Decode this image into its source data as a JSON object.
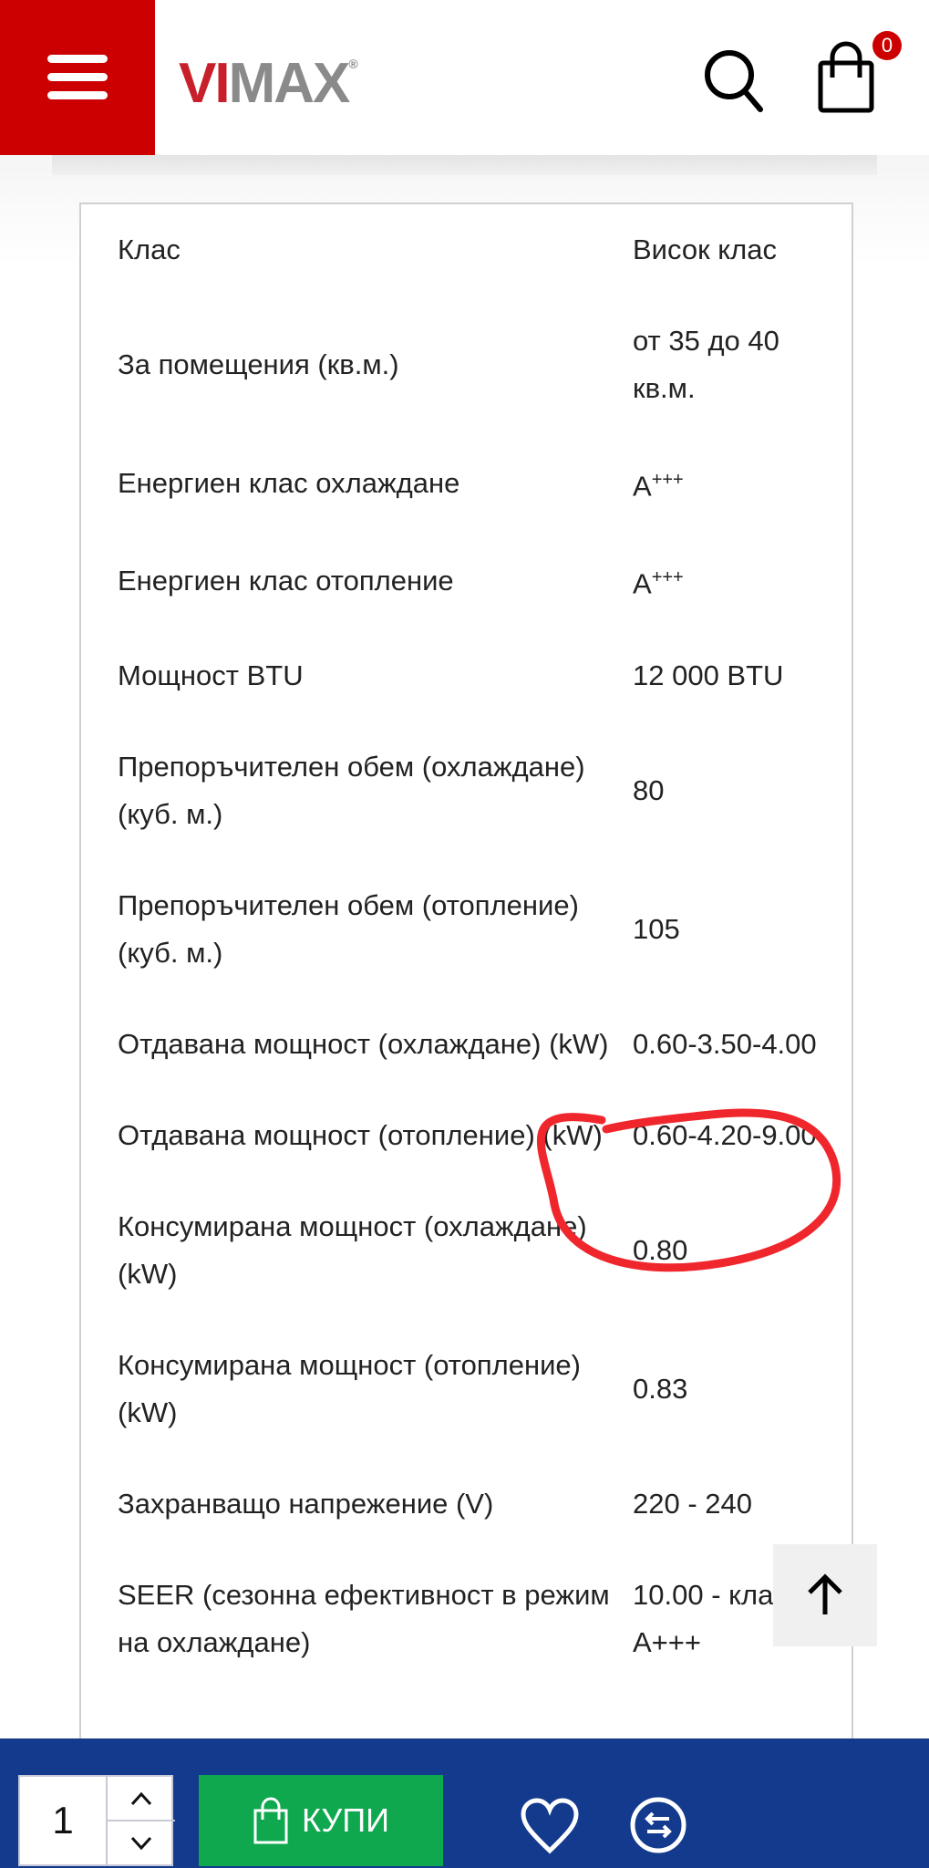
{
  "header": {
    "logo_text": "VIMAX",
    "logo_mark": "®",
    "cart_count": "0",
    "icons": [
      "menu-icon",
      "search-icon",
      "shopping-bag-icon"
    ],
    "brand_color": "#cc0000"
  },
  "specs": [
    {
      "label": "Клас",
      "value": "Висок клас"
    },
    {
      "label": "За помещения (кв.м.)",
      "value": "от 35 до 40 кв.м."
    },
    {
      "label": "Енергиен клас охлаждане",
      "value": "A+++",
      "sup": true
    },
    {
      "label": "Енергиен клас отопление",
      "value": "A+++",
      "sup": true
    },
    {
      "label": "Мощност BTU",
      "value": "12 000 BTU"
    },
    {
      "label": "Препоръчителен обем (охлаждане) (куб. м.)",
      "value": "80"
    },
    {
      "label": "Препоръчителен обем (отопление) (куб. м.)",
      "value": "105"
    },
    {
      "label": "Отдавана мощност (охлаждане) (kW)",
      "value": "0.60-3.50-4.00"
    },
    {
      "label": "Отдавана мощност (отопление) (kW)",
      "value": "0.60-4.20-9.00"
    },
    {
      "label": "Консумирана мощност (охлаждане) (kW)",
      "value": "0.80"
    },
    {
      "label": "Консумирана мощност (отопление) (kW)",
      "value": "0.83"
    },
    {
      "label": "Захранващо напрежение (V)",
      "value": "220 - 240"
    },
    {
      "label": "SEER (сезонна ефективност в режим на охлаждане)",
      "value": "10.00 - клас A+++"
    }
  ],
  "annotation": {
    "type": "red-hand-drawn-circle",
    "target": "Отдавана мощност (отопление) (kW)",
    "color": "#f0262d"
  },
  "bottom_bar": {
    "quantity": "1",
    "buy_label": "КУПИ",
    "color": "#133a8c",
    "buy_color": "#0fa84f",
    "icons": [
      "heart-icon",
      "compare-icon"
    ]
  }
}
